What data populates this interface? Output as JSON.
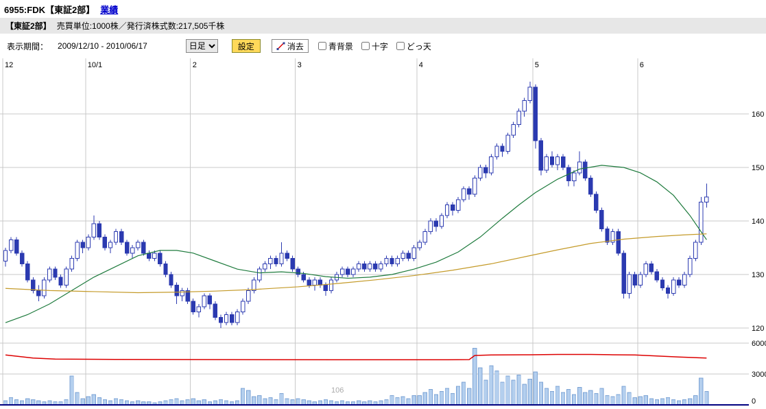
{
  "header": {
    "symbol_title": "6955:FDK【東証2部】",
    "performance_link": "業績"
  },
  "info_bar": {
    "exchange": "【東証2部】",
    "details": "売買単位:1000株／発行済株式数:217,505千株"
  },
  "controls": {
    "period_label": "表示期間：",
    "period_value": "2009/12/10 - 2010/06/17",
    "timeframe_value": "日足",
    "settings_button": "設定",
    "erase_button": "消去",
    "checkboxes": [
      {
        "label": "青背景",
        "checked": false
      },
      {
        "label": "十字",
        "checked": false
      },
      {
        "label": "どっ天",
        "checked": false
      }
    ]
  },
  "chart_data": {
    "type": "candlestick",
    "title": "6955:FDK 日足 2009/12/10 - 2010/06/17",
    "ohlc_format": "[open,high,low,close]",
    "price_axis": {
      "ticks": [
        120,
        130,
        140,
        150,
        160
      ],
      "min": 119,
      "max": 167
    },
    "volume_axis": {
      "ticks_millions": [
        0,
        3,
        6
      ]
    },
    "x_ticks": [
      {
        "label": "12",
        "index": 0
      },
      {
        "label": "10/1",
        "index": 15
      },
      {
        "label": "2",
        "index": 34
      },
      {
        "label": "3",
        "index": 53
      },
      {
        "label": "4",
        "index": 75
      },
      {
        "label": "5",
        "index": 96
      },
      {
        "label": "6",
        "index": 115
      }
    ],
    "watermark": "106",
    "candles": [
      [
        132.5,
        135,
        131.5,
        134.5
      ],
      [
        134.5,
        137,
        134,
        136.5
      ],
      [
        136.5,
        137,
        133.5,
        134
      ],
      [
        134,
        134.5,
        131.5,
        132
      ],
      [
        132,
        132.5,
        128.5,
        129
      ],
      [
        129,
        129.5,
        126.5,
        127
      ],
      [
        127,
        128,
        125,
        126
      ],
      [
        126,
        129.5,
        125.5,
        129
      ],
      [
        129,
        131.5,
        128.5,
        131
      ],
      [
        131,
        131.5,
        129,
        129.5
      ],
      [
        129.5,
        130,
        127.5,
        128
      ],
      [
        128,
        131.5,
        127.5,
        131
      ],
      [
        131,
        133.5,
        130.5,
        133
      ],
      [
        133,
        136.5,
        132.5,
        136
      ],
      [
        136,
        136.5,
        134,
        135
      ],
      [
        135,
        137.5,
        134.5,
        137
      ],
      [
        137,
        141,
        136.5,
        139.5
      ],
      [
        139.5,
        140,
        136.5,
        137
      ],
      [
        137,
        137.5,
        134.5,
        135
      ],
      [
        135,
        136.5,
        134,
        136
      ],
      [
        136,
        138.5,
        135.5,
        138
      ],
      [
        138,
        138.5,
        135.5,
        136
      ],
      [
        136,
        136.5,
        133.5,
        134
      ],
      [
        134,
        135.5,
        133,
        135
      ],
      [
        135,
        136.5,
        134.5,
        136
      ],
      [
        136,
        136.5,
        133.5,
        134
      ],
      [
        134,
        134.5,
        132.5,
        133
      ],
      [
        133,
        134.5,
        132.5,
        134
      ],
      [
        134,
        134.5,
        131.5,
        132
      ],
      [
        132,
        132.5,
        129.5,
        130
      ],
      [
        130,
        130.5,
        127.5,
        128
      ],
      [
        128,
        128.5,
        124.5,
        126
      ],
      [
        126,
        127.5,
        125,
        127
      ],
      [
        127,
        127.5,
        124.5,
        125
      ],
      [
        125,
        125.5,
        122.5,
        123
      ],
      [
        123,
        124.5,
        122,
        124
      ],
      [
        124,
        126.5,
        123.5,
        126
      ],
      [
        126,
        126.5,
        123.5,
        124.5
      ],
      [
        124.5,
        125,
        121.5,
        122
      ],
      [
        122,
        122.5,
        120,
        121
      ],
      [
        121,
        123,
        120.5,
        122.5
      ],
      [
        122.5,
        123,
        120.5,
        121
      ],
      [
        121,
        123.5,
        120.5,
        123
      ],
      [
        123,
        125.5,
        122.5,
        125
      ],
      [
        125,
        127.5,
        124.5,
        127
      ],
      [
        127,
        129.5,
        126.5,
        129
      ],
      [
        129,
        131.5,
        128.5,
        131
      ],
      [
        131,
        132.5,
        130.5,
        132
      ],
      [
        132,
        133.5,
        131,
        133
      ],
      [
        133,
        133.5,
        131.5,
        132
      ],
      [
        132,
        136,
        131.5,
        134
      ],
      [
        134,
        134.5,
        132.5,
        133
      ],
      [
        133,
        133.5,
        130.5,
        131
      ],
      [
        131,
        131.5,
        129.5,
        130
      ],
      [
        130,
        130.5,
        128.5,
        129
      ],
      [
        129,
        129.5,
        127.5,
        128
      ],
      [
        128,
        129.5,
        127,
        129
      ],
      [
        129,
        129.5,
        127.5,
        128
      ],
      [
        128,
        128.5,
        126,
        127
      ],
      [
        127,
        129.5,
        126.5,
        129
      ],
      [
        129,
        130.5,
        128.5,
        130
      ],
      [
        130,
        131.5,
        129.5,
        131
      ],
      [
        131,
        131.5,
        129.5,
        130
      ],
      [
        130,
        131.5,
        129.5,
        131
      ],
      [
        131,
        132.5,
        130.5,
        132
      ],
      [
        132,
        132.5,
        130.5,
        131
      ],
      [
        131,
        132.5,
        130.5,
        132
      ],
      [
        132,
        132.5,
        130.5,
        131
      ],
      [
        131,
        132.5,
        130.5,
        132
      ],
      [
        132,
        133.5,
        131.5,
        133
      ],
      [
        133,
        133.5,
        131.5,
        132
      ],
      [
        132,
        133.5,
        131.5,
        133
      ],
      [
        133,
        134.5,
        132.5,
        134
      ],
      [
        134,
        134.5,
        132.5,
        133
      ],
      [
        133,
        135.5,
        132.5,
        135
      ],
      [
        135,
        136.5,
        134.5,
        136
      ],
      [
        136,
        138.5,
        135.5,
        138
      ],
      [
        138,
        140.5,
        137.5,
        140
      ],
      [
        140,
        140.5,
        138,
        139
      ],
      [
        139,
        141.5,
        138.5,
        141
      ],
      [
        141,
        143.5,
        140.5,
        143
      ],
      [
        143,
        143.5,
        141,
        142
      ],
      [
        142,
        144.5,
        141.5,
        144
      ],
      [
        144,
        146.5,
        143.5,
        146
      ],
      [
        146,
        146.5,
        144,
        145
      ],
      [
        145,
        148.5,
        144.5,
        148
      ],
      [
        148,
        150.5,
        147.5,
        150
      ],
      [
        150,
        150.5,
        148,
        149
      ],
      [
        149,
        152.5,
        148.5,
        152
      ],
      [
        152,
        154.5,
        151.5,
        154
      ],
      [
        154,
        154.5,
        152,
        153
      ],
      [
        153,
        156.5,
        152.5,
        156
      ],
      [
        156,
        158.5,
        155.5,
        158
      ],
      [
        158,
        161,
        157.5,
        160.5
      ],
      [
        160.5,
        163,
        159.5,
        162.5
      ],
      [
        162.5,
        166,
        162,
        165
      ],
      [
        165,
        165.5,
        153.5,
        155
      ],
      [
        155,
        155.5,
        148.5,
        149.5
      ],
      [
        149.5,
        152.5,
        149,
        152
      ],
      [
        152,
        153,
        150,
        150.5
      ],
      [
        150.5,
        152.5,
        149.5,
        152
      ],
      [
        152,
        152.5,
        149.5,
        150
      ],
      [
        150,
        150.5,
        146.5,
        147.5
      ],
      [
        147.5,
        149.5,
        146.5,
        149
      ],
      [
        149,
        153,
        148.5,
        151
      ],
      [
        151,
        151.5,
        147.5,
        148
      ],
      [
        148,
        148.5,
        144.5,
        145
      ],
      [
        145,
        145.5,
        141.5,
        142
      ],
      [
        142,
        142.5,
        138,
        138.5
      ],
      [
        138.5,
        139,
        135.5,
        136
      ],
      [
        136,
        138.5,
        135.5,
        138
      ],
      [
        138,
        138.5,
        133.5,
        134
      ],
      [
        134,
        134.5,
        125.5,
        126.5
      ],
      [
        126.5,
        130.5,
        125.5,
        130
      ],
      [
        130,
        130.5,
        127.5,
        128
      ],
      [
        128,
        130.5,
        127.5,
        130
      ],
      [
        130,
        132.5,
        129.5,
        132
      ],
      [
        132,
        132.5,
        130,
        130.5
      ],
      [
        130.5,
        131,
        128.5,
        129
      ],
      [
        129,
        129.5,
        127,
        127.5
      ],
      [
        127.5,
        128,
        125.5,
        126.5
      ],
      [
        126.5,
        129.5,
        126,
        129
      ],
      [
        129,
        129.5,
        127.5,
        128
      ],
      [
        128,
        130.5,
        127.5,
        130
      ],
      [
        130,
        133.5,
        129.5,
        133
      ],
      [
        133,
        136.5,
        132.5,
        136
      ],
      [
        136,
        144.5,
        135.5,
        143.5
      ],
      [
        143.5,
        147,
        142.5,
        144.5
      ]
    ],
    "volumes_millions": [
      0.4,
      0.7,
      0.5,
      0.4,
      0.6,
      0.5,
      0.4,
      0.3,
      0.4,
      0.3,
      0.3,
      0.5,
      2.8,
      1.2,
      0.6,
      0.8,
      1.0,
      0.7,
      0.5,
      0.4,
      0.6,
      0.5,
      0.4,
      0.3,
      0.4,
      0.3,
      0.3,
      0.2,
      0.3,
      0.4,
      0.5,
      0.6,
      0.4,
      0.5,
      0.6,
      0.4,
      0.5,
      0.3,
      0.4,
      0.5,
      0.4,
      0.3,
      0.4,
      1.6,
      1.4,
      0.8,
      0.9,
      0.6,
      0.7,
      0.5,
      1.1,
      0.6,
      0.5,
      0.6,
      0.5,
      0.4,
      0.3,
      0.4,
      0.5,
      0.4,
      0.3,
      0.4,
      0.3,
      0.3,
      0.4,
      0.3,
      0.4,
      0.3,
      0.4,
      0.5,
      0.9,
      0.7,
      0.8,
      0.6,
      0.9,
      0.9,
      1.2,
      1.5,
      1.0,
      1.3,
      1.6,
      1.1,
      1.8,
      2.2,
      1.6,
      5.5,
      3.6,
      2.4,
      3.8,
      3.3,
      2.2,
      2.8,
      2.4,
      2.9,
      2.0,
      2.5,
      3.2,
      2.2,
      1.6,
      1.3,
      1.8,
      1.2,
      1.5,
      1.0,
      1.7,
      1.2,
      1.4,
      1.1,
      1.6,
      0.9,
      0.8,
      1.0,
      1.8,
      1.2,
      0.7,
      0.8,
      0.9,
      0.6,
      0.5,
      0.6,
      0.7,
      0.5,
      0.4,
      0.5,
      0.6,
      0.9,
      2.6,
      1.3
    ],
    "ma_green_points": [
      [
        0,
        121
      ],
      [
        4,
        122.5
      ],
      [
        8,
        124.5
      ],
      [
        12,
        127
      ],
      [
        16,
        129.5
      ],
      [
        20,
        131.5
      ],
      [
        24,
        133.5
      ],
      [
        28,
        134.5
      ],
      [
        31,
        134.5
      ],
      [
        34,
        134
      ],
      [
        38,
        132.5
      ],
      [
        42,
        131
      ],
      [
        46,
        130.3
      ],
      [
        50,
        130.5
      ],
      [
        54,
        130.2
      ],
      [
        58,
        129.6
      ],
      [
        62,
        129.3
      ],
      [
        66,
        129.5
      ],
      [
        70,
        130
      ],
      [
        74,
        131
      ],
      [
        78,
        132.3
      ],
      [
        82,
        134.2
      ],
      [
        86,
        137
      ],
      [
        90,
        140.5
      ],
      [
        93,
        143
      ],
      [
        96,
        145.3
      ],
      [
        100,
        147.8
      ],
      [
        104,
        149.7
      ],
      [
        108,
        150.4
      ],
      [
        112,
        150
      ],
      [
        115,
        149
      ],
      [
        118,
        147.3
      ],
      [
        121,
        144.8
      ],
      [
        124,
        141
      ],
      [
        127,
        136.5
      ]
    ],
    "ma_orange_points": [
      [
        0,
        127.4
      ],
      [
        8,
        127
      ],
      [
        16,
        126.8
      ],
      [
        24,
        126.6
      ],
      [
        31,
        126.7
      ],
      [
        38,
        126.9
      ],
      [
        45,
        127.2
      ],
      [
        53,
        127.7
      ],
      [
        60,
        128.3
      ],
      [
        67,
        129
      ],
      [
        74,
        129.8
      ],
      [
        81,
        130.8
      ],
      [
        88,
        132
      ],
      [
        94,
        133.3
      ],
      [
        100,
        134.6
      ],
      [
        106,
        135.8
      ],
      [
        112,
        136.6
      ],
      [
        118,
        137.1
      ],
      [
        123,
        137.4
      ],
      [
        127,
        137.6
      ]
    ],
    "volume_red_line_points_millions": [
      [
        0,
        4.85
      ],
      [
        5,
        4.55
      ],
      [
        9,
        4.45
      ],
      [
        20,
        4.42
      ],
      [
        40,
        4.4
      ],
      [
        60,
        4.38
      ],
      [
        80,
        4.38
      ],
      [
        84,
        4.4
      ],
      [
        85,
        4.8
      ],
      [
        88,
        4.85
      ],
      [
        95,
        4.87
      ],
      [
        100,
        4.9
      ],
      [
        106,
        4.9
      ],
      [
        110,
        4.87
      ],
      [
        114,
        4.85
      ],
      [
        118,
        4.75
      ],
      [
        122,
        4.65
      ],
      [
        127,
        4.55
      ]
    ],
    "colors": {
      "grid": "#c9c9c9",
      "candle": "#2b3ab0",
      "up_fill": "#ffffff",
      "volume_fill": "#b4cfee",
      "volume_stroke": "#7aa2d4",
      "red_line": "#dd0000",
      "ma_green": "#1d7a3c",
      "ma_orange": "#c49a28",
      "axis_line": "#000080",
      "watermark": "#aaaaaa"
    }
  }
}
